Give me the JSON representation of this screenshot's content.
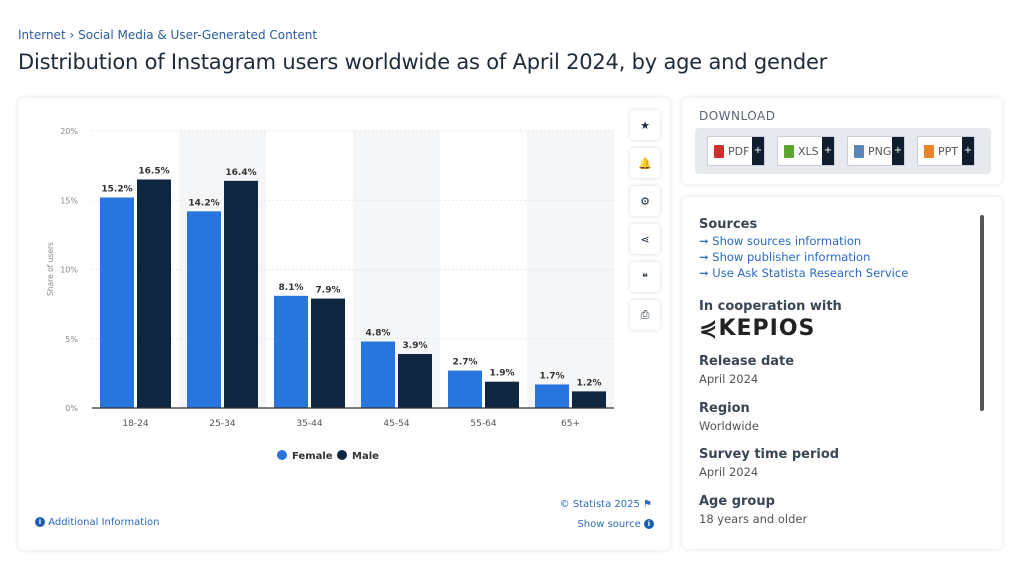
{
  "breadcrumb": {
    "items": [
      "Internet",
      "Social Media & User-Generated Content"
    ],
    "sep": "›"
  },
  "title": "Distribution of Instagram users worldwide as of April 2024, by age and gender",
  "chart_data": {
    "type": "bar",
    "categories": [
      "18-24",
      "25-34",
      "35-44",
      "45-54",
      "55-64",
      "65+"
    ],
    "series": [
      {
        "name": "Female",
        "values": [
          15.2,
          14.2,
          8.1,
          4.8,
          2.7,
          1.7
        ],
        "color": "#2876dd"
      },
      {
        "name": "Male",
        "values": [
          16.5,
          16.4,
          7.9,
          3.9,
          1.9,
          1.2
        ],
        "color": "#0f2640"
      }
    ],
    "ylabel": "Share of users",
    "ylim": [
      0,
      20
    ],
    "yticks": [
      "0%",
      "5%",
      "10%",
      "15%",
      "20%"
    ],
    "yticks_values": [
      0,
      5,
      10,
      15,
      20
    ],
    "data_label_suffix": "%",
    "grid": true,
    "legend": "bottom"
  },
  "side_tools": [
    {
      "icon": "star-icon",
      "glyph": "★"
    },
    {
      "icon": "bell-icon",
      "glyph": "🔔"
    },
    {
      "icon": "gear-icon",
      "glyph": "⚙"
    },
    {
      "icon": "share-icon",
      "glyph": "⋖"
    },
    {
      "icon": "quote-icon",
      "glyph": "❝"
    },
    {
      "icon": "print-icon",
      "glyph": "⎙"
    }
  ],
  "footer": {
    "copyright": "© Statista 2025",
    "show_source": "Show source",
    "additional": "Additional Information"
  },
  "download": {
    "title": "DOWNLOAD",
    "buttons": [
      {
        "label": "PDF",
        "color": "#d32f2f"
      },
      {
        "label": "XLS",
        "color": "#5aa532"
      },
      {
        "label": "PNG",
        "color": "#5b86b8"
      },
      {
        "label": "PPT",
        "color": "#e8842a"
      }
    ],
    "plus": "+"
  },
  "info": {
    "sources_label": "Sources",
    "links": [
      "Show sources information",
      "Show publisher information",
      "Use Ask Statista Research Service"
    ],
    "coop_label": "In cooperation with",
    "coop_logo": "KEPIOS",
    "release_label": "Release date",
    "release": "April 2024",
    "region_label": "Region",
    "region": "Worldwide",
    "period_label": "Survey time period",
    "period": "April 2024",
    "age_label": "Age group",
    "age": "18 years and older"
  }
}
